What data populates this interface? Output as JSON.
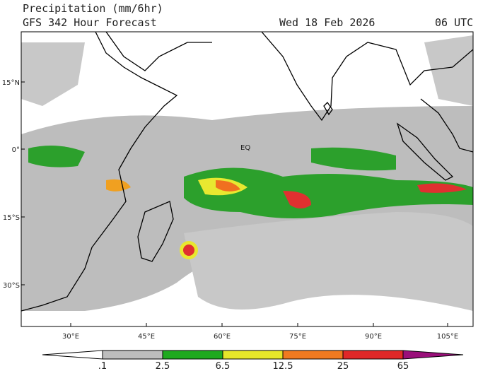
{
  "header": {
    "title": "Precipitation (mm/6hr)",
    "forecast": "GFS 342 Hour Forecast",
    "date": "Wed 18 Feb 2026",
    "time": "06 UTC"
  },
  "map": {
    "lat_labels": [
      "15°N",
      "0°",
      "15°S",
      "30°S"
    ],
    "lon_labels": [
      "30°E",
      "45°E",
      "60°E",
      "75°E",
      "90°E",
      "105°E"
    ],
    "eq_label": "EQ"
  },
  "colorbar": {
    "labels": [
      ".1",
      "2.5",
      "6.5",
      "12.5",
      "25",
      "65"
    ]
  }
}
